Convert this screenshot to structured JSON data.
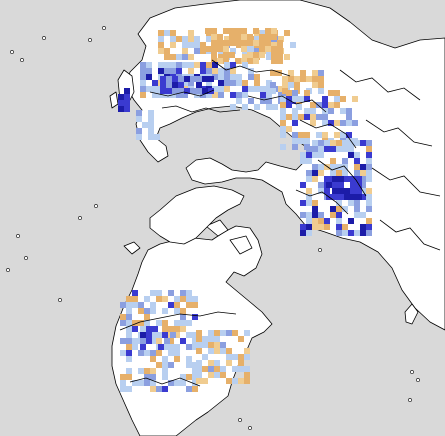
{
  "map": {
    "projection": "north-polar-stereographic",
    "colors": {
      "ocean": "#d9d9d9",
      "land": "#ffffff",
      "border": "#000000",
      "light_blue": "#b8cff0",
      "medium_blue": "#8b9fe0",
      "dark_blue": "#3a3ad0",
      "navy": "#1c1ca8",
      "orange": "#e6b06a",
      "light_orange": "#f0cc90"
    },
    "legend": "none",
    "labels": []
  }
}
